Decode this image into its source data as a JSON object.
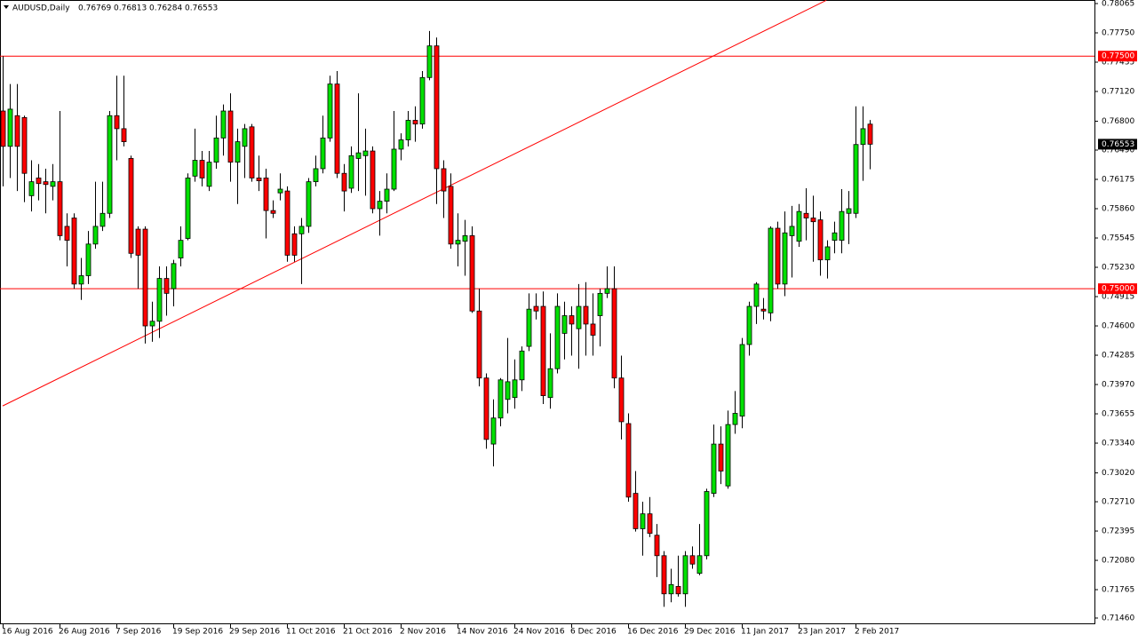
{
  "chart_data": {
    "type": "candlestick",
    "title": "AUDUSD,Daily",
    "header_ohlc": [
      0.76769,
      0.76813,
      0.76284,
      0.76553
    ],
    "categories": [
      "16 Aug 2016",
      null,
      null,
      null,
      null,
      null,
      null,
      null,
      "26 Aug 2016",
      null,
      null,
      null,
      null,
      null,
      null,
      null,
      "7 Sep 2016",
      null,
      null,
      null,
      null,
      null,
      null,
      null,
      "19 Sep 2016",
      null,
      null,
      null,
      null,
      null,
      null,
      null,
      "29 Sep 2016",
      null,
      null,
      null,
      null,
      null,
      null,
      null,
      "11 Oct 2016",
      null,
      null,
      null,
      null,
      null,
      null,
      null,
      "21 Oct 2016",
      null,
      null,
      null,
      null,
      null,
      null,
      null,
      "2 Nov 2016",
      null,
      null,
      null,
      null,
      null,
      null,
      null,
      "14 Nov 2016",
      null,
      null,
      null,
      null,
      null,
      null,
      null,
      "24 Nov 2016",
      null,
      null,
      null,
      null,
      null,
      null,
      null,
      "6 Dec 2016",
      null,
      null,
      null,
      null,
      null,
      null,
      null,
      "16 Dec 2016",
      null,
      null,
      null,
      null,
      null,
      null,
      null,
      "29 Dec 2016",
      null,
      null,
      null,
      null,
      null,
      null,
      null,
      "11 Jan 2017",
      null,
      null,
      null,
      null,
      null,
      null,
      null,
      "23 Jan 2017",
      null,
      null,
      null,
      null,
      null,
      null,
      null,
      "2 Feb 2017",
      null,
      null
    ],
    "open": [
      0.7691,
      0.7653,
      0.7686,
      0.7684,
      0.76,
      0.7619,
      0.7615,
      0.761,
      0.7615,
      0.7567,
      0.7576,
      0.7505,
      0.7514,
      0.7548,
      0.7567,
      0.7581,
      0.7686,
      0.7672,
      0.764,
      0.7564,
      0.7564,
      0.746,
      0.7465,
      0.7511,
      0.75,
      0.7533,
      0.7554,
      0.7621,
      0.7638,
      0.761,
      0.7636,
      0.7662,
      0.7691,
      0.7636,
      0.7653,
      0.7674,
      0.7619,
      0.7619,
      0.7584,
      0.7603,
      0.7605,
      0.7559,
      0.7559,
      0.7567,
      0.7615,
      0.7629,
      0.7662,
      0.772,
      0.7624,
      0.7608,
      0.764,
      0.7643,
      0.7648,
      0.7586,
      0.7594,
      0.7607,
      0.765,
      0.766,
      0.7681,
      0.7677,
      0.7727,
      0.7761,
      0.7629,
      0.761,
      0.7548,
      0.7551,
      0.7557,
      0.7476,
      0.7404,
      0.7333,
      0.7361,
      0.7381,
      0.7383,
      0.7402,
      0.7438,
      0.7481,
      0.7481,
      0.7383,
      0.7414,
      0.7452,
      0.7471,
      0.7457,
      0.7481,
      0.7462,
      0.7471,
      0.7495,
      0.75,
      0.7404,
      0.7355,
      0.728,
      0.7242,
      0.7258,
      0.7235,
      0.7213,
      0.7172,
      0.718,
      0.7172,
      0.7213,
      0.7194,
      0.7213,
      0.728,
      0.7333,
      0.7288,
      0.7354,
      0.7363,
      0.744,
      0.7481,
      0.7478,
      0.7474,
      0.7565,
      0.7505,
      0.7557,
      0.7551,
      0.7581,
      0.7576,
      0.7574,
      0.7531,
      0.7552,
      0.7552,
      0.7581,
      0.7581,
      0.7655,
      0.76769
    ],
    "high": [
      0.775,
      0.772,
      0.772,
      0.7686,
      0.7638,
      0.7634,
      0.7629,
      0.7634,
      0.7691,
      0.7581,
      0.7581,
      0.7533,
      0.7562,
      0.7615,
      0.7615,
      0.7691,
      0.7729,
      0.7729,
      0.7643,
      0.7567,
      0.7567,
      0.7486,
      0.7524,
      0.7524,
      0.7531,
      0.7567,
      0.7624,
      0.7672,
      0.7648,
      0.7648,
      0.7686,
      0.7698,
      0.771,
      0.7672,
      0.7677,
      0.7677,
      0.7643,
      0.7629,
      0.7595,
      0.7624,
      0.761,
      0.7567,
      0.7576,
      0.7619,
      0.7643,
      0.7686,
      0.7729,
      0.7734,
      0.7634,
      0.7653,
      0.771,
      0.7672,
      0.7653,
      0.7605,
      0.7624,
      0.7691,
      0.7667,
      0.7691,
      0.7696,
      0.7734,
      0.7777,
      0.777,
      0.7638,
      0.7624,
      0.7581,
      0.7574,
      0.7567,
      0.75,
      0.7409,
      0.7381,
      0.7404,
      0.7447,
      0.7424,
      0.7438,
      0.7495,
      0.7495,
      0.7497,
      0.7452,
      0.7495,
      0.7486,
      0.7481,
      0.7505,
      0.7507,
      0.7495,
      0.75,
      0.7524,
      0.7524,
      0.7428,
      0.7366,
      0.7304,
      0.7271,
      0.7276,
      0.7247,
      0.7218,
      0.7199,
      0.7213,
      0.7218,
      0.7223,
      0.7247,
      0.7285,
      0.7354,
      0.7352,
      0.7369,
      0.739,
      0.7447,
      0.7486,
      0.7507,
      0.749,
      0.7567,
      0.7572,
      0.7583,
      0.7589,
      0.7591,
      0.7608,
      0.76,
      0.7583,
      0.7552,
      0.7572,
      0.7607,
      0.7605,
      0.7696,
      0.7696,
      0.76813
    ],
    "low": [
      0.761,
      0.7619,
      0.7605,
      0.7593,
      0.7583,
      0.7595,
      0.7581,
      0.7595,
      0.7552,
      0.7524,
      0.75,
      0.7488,
      0.7505,
      0.7543,
      0.7562,
      0.7576,
      0.7638,
      0.7653,
      0.7533,
      0.75,
      0.7441,
      0.7443,
      0.7447,
      0.7471,
      0.7481,
      0.7524,
      0.7552,
      0.7615,
      0.761,
      0.7605,
      0.7629,
      0.7643,
      0.7615,
      0.7591,
      0.7619,
      0.7615,
      0.7605,
      0.7554,
      0.7576,
      0.7595,
      0.7529,
      0.7529,
      0.7505,
      0.756,
      0.761,
      0.7624,
      0.7658,
      0.7619,
      0.7583,
      0.7603,
      0.7605,
      0.76,
      0.7581,
      0.7557,
      0.7581,
      0.7605,
      0.7638,
      0.7653,
      0.7658,
      0.7672,
      0.7724,
      0.7591,
      0.7576,
      0.7543,
      0.7524,
      0.7514,
      0.7474,
      0.7395,
      0.7328,
      0.7309,
      0.7352,
      0.7366,
      0.7371,
      0.739,
      0.7433,
      0.7467,
      0.7376,
      0.7371,
      0.7409,
      0.7424,
      0.7428,
      0.7414,
      0.7428,
      0.7428,
      0.7438,
      0.749,
      0.7393,
      0.7338,
      0.7271,
      0.7239,
      0.7213,
      0.7233,
      0.719,
      0.7158,
      0.7163,
      0.7169,
      0.7158,
      0.7199,
      0.7192,
      0.7209,
      0.7276,
      0.729,
      0.7285,
      0.7344,
      0.735,
      0.7428,
      0.7462,
      0.7467,
      0.7465,
      0.75,
      0.7492,
      0.7512,
      0.7545,
      0.7552,
      0.7529,
      0.7514,
      0.7511,
      0.7538,
      0.7538,
      0.7548,
      0.7576,
      0.7616,
      0.76284
    ],
    "close": [
      0.7653,
      0.7693,
      0.7653,
      0.7624,
      0.7615,
      0.7613,
      0.7612,
      0.7615,
      0.7557,
      0.7552,
      0.7505,
      0.7514,
      0.7548,
      0.7567,
      0.7581,
      0.7686,
      0.7672,
      0.7658,
      0.7538,
      0.7536,
      0.746,
      0.7465,
      0.7511,
      0.7495,
      0.7527,
      0.7552,
      0.7619,
      0.7638,
      0.7619,
      0.7636,
      0.7662,
      0.7691,
      0.7636,
      0.7658,
      0.7672,
      0.7619,
      0.7616,
      0.7584,
      0.7581,
      0.7607,
      0.7536,
      0.7536,
      0.7567,
      0.7615,
      0.7629,
      0.7662,
      0.772,
      0.7624,
      0.7605,
      0.7643,
      0.7646,
      0.7648,
      0.7586,
      0.7594,
      0.7607,
      0.765,
      0.766,
      0.7681,
      0.7677,
      0.7727,
      0.7761,
      0.7629,
      0.7605,
      0.7548,
      0.7552,
      0.7557,
      0.7476,
      0.7404,
      0.7338,
      0.7361,
      0.7402,
      0.74,
      0.7402,
      0.7433,
      0.7478,
      0.7476,
      0.7385,
      0.7414,
      0.7481,
      0.7471,
      0.7462,
      0.7481,
      0.7462,
      0.745,
      0.7495,
      0.75,
      0.7404,
      0.7357,
      0.7276,
      0.7242,
      0.7258,
      0.7237,
      0.7213,
      0.7172,
      0.7182,
      0.7172,
      0.7213,
      0.7204,
      0.7213,
      0.7282,
      0.7333,
      0.7304,
      0.7354,
      0.7366,
      0.744,
      0.7481,
      0.7505,
      0.7476,
      0.7565,
      0.7505,
      0.756,
      0.7567,
      0.7583,
      0.7576,
      0.7572,
      0.7531,
      0.7545,
      0.756,
      0.7583,
      0.7586,
      0.7655,
      0.7672,
      0.76553
    ],
    "up_color": "#00e000",
    "down_color": "#ff0000",
    "ylim": [
      0.7146,
      0.78065
    ],
    "yticks": [
      0.78065,
      {
        "value": 0.7775,
        "label": "0.77750"
      },
      0.77435,
      {
        "value": 0.7712,
        "label": "0.77120"
      },
      {
        "value": 0.768,
        "label": "0.76800"
      },
      {
        "value": 0.7649,
        "label": "0.76490"
      },
      0.76175,
      {
        "value": 0.7586,
        "label": "0.75860"
      },
      0.75545,
      {
        "value": 0.7523,
        "label": "0.75230"
      },
      0.74915,
      {
        "value": 0.746,
        "label": "0.74600"
      },
      0.74285,
      {
        "value": 0.7397,
        "label": "0.73970"
      },
      0.73655,
      {
        "value": 0.7334,
        "label": "0.73340"
      },
      {
        "value": 0.7302,
        "label": "0.73020"
      },
      {
        "value": 0.7271,
        "label": "0.72710"
      },
      0.72395,
      {
        "value": 0.7208,
        "label": "0.72080"
      },
      0.71765,
      {
        "value": 0.7146,
        "label": "0.71460"
      }
    ],
    "hlines": [
      {
        "value": 0.775,
        "label": "0.77500",
        "color": "#ff0000"
      },
      {
        "value": 0.75,
        "label": "0.75000",
        "color": "#ff0000"
      }
    ],
    "price_line": 0.76553,
    "trendline": {
      "x": [
        0,
        115.9
      ],
      "y": [
        0.7374,
        0.781
      ],
      "color": "#ff0000"
    }
  }
}
